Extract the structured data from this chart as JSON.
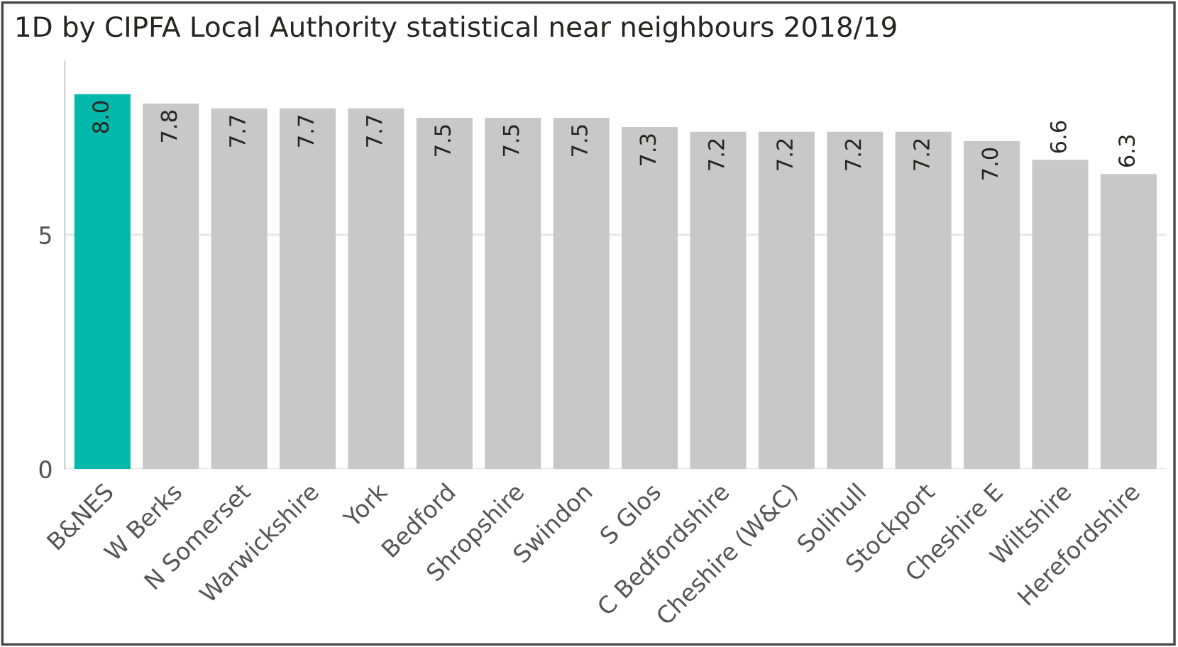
{
  "chart_data": {
    "type": "bar",
    "title": "1D by CIPFA Local Authority statistical near neighbours 2018/19",
    "categories": [
      "B&NES",
      "W Berks",
      "N Somerset",
      "Warwickshire",
      "York",
      "Bedford",
      "Shropshire",
      "Swindon",
      "S Glos",
      "C Bedfordshire",
      "Cheshire (W&C)",
      "Solihull",
      "Stockport",
      "Cheshire E",
      "Wiltshire",
      "Herefordshire"
    ],
    "values": [
      8.0,
      7.8,
      7.7,
      7.7,
      7.7,
      7.5,
      7.5,
      7.5,
      7.3,
      7.2,
      7.2,
      7.2,
      7.2,
      7.0,
      6.6,
      6.3
    ],
    "colors": [
      "#01b8aa",
      "#c8c8c8",
      "#c8c8c8",
      "#c8c8c8",
      "#c8c8c8",
      "#c8c8c8",
      "#c8c8c8",
      "#c8c8c8",
      "#c8c8c8",
      "#c8c8c8",
      "#c8c8c8",
      "#c8c8c8",
      "#c8c8c8",
      "#c8c8c8",
      "#c8c8c8",
      "#c8c8c8"
    ],
    "value_labels": [
      "8.0",
      "7.8",
      "7.7",
      "7.7",
      "7.7",
      "7.5",
      "7.5",
      "7.5",
      "7.3",
      "7.2",
      "7.2",
      "7.2",
      "7.2",
      "7.0",
      "6.6",
      "6.3"
    ],
    "ylim": [
      0,
      8.7
    ],
    "yticks": [
      0,
      5
    ],
    "grid": "y"
  }
}
